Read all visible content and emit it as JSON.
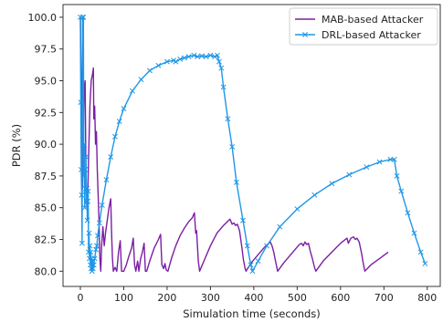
{
  "chart_data": {
    "type": "line",
    "xlabel": "Simulation time (seconds)",
    "ylabel": "PDR (%)",
    "xlim": [
      -40,
      830
    ],
    "ylim": [
      78.8,
      101.0
    ],
    "xticks": [
      0,
      100,
      200,
      300,
      400,
      500,
      600,
      700,
      800
    ],
    "yticks": [
      80.0,
      82.5,
      85.0,
      87.5,
      90.0,
      92.5,
      95.0,
      97.5,
      100.0
    ],
    "ytick_labels": [
      "80.0",
      "82.5",
      "85.0",
      "87.5",
      "90.0",
      "92.5",
      "95.0",
      "97.5",
      "100.0"
    ],
    "grid": false,
    "legend_position": "top-right",
    "series": [
      {
        "name": "MAB-based Attacker",
        "color": "#7b1fa2",
        "marker": "none",
        "points": [
          [
            0,
            100.0
          ],
          [
            3,
            92.0
          ],
          [
            5,
            86.5
          ],
          [
            7,
            91.0
          ],
          [
            9,
            94.5
          ],
          [
            11,
            95.0
          ],
          [
            13,
            87.0
          ],
          [
            15,
            85.0
          ],
          [
            17,
            86.0
          ],
          [
            19,
            89.0
          ],
          [
            22,
            93.0
          ],
          [
            25,
            95.0
          ],
          [
            28,
            95.5
          ],
          [
            30,
            96.0
          ],
          [
            31,
            92.0
          ],
          [
            33,
            93.0
          ],
          [
            35,
            90.0
          ],
          [
            37,
            91.0
          ],
          [
            39,
            88.0
          ],
          [
            41,
            86.0
          ],
          [
            43,
            84.0
          ],
          [
            45,
            81.0
          ],
          [
            47,
            80.0
          ],
          [
            49,
            82.0
          ],
          [
            52,
            83.5
          ],
          [
            55,
            82.0
          ],
          [
            58,
            83.0
          ],
          [
            62,
            84.0
          ],
          [
            66,
            85.0
          ],
          [
            70,
            85.7
          ],
          [
            72,
            83.0
          ],
          [
            74,
            81.0
          ],
          [
            76,
            80.0
          ],
          [
            80,
            80.3
          ],
          [
            84,
            80.0
          ],
          [
            88,
            81.5
          ],
          [
            92,
            82.4
          ],
          [
            95,
            80.0
          ],
          [
            100,
            80.0
          ],
          [
            106,
            80.5
          ],
          [
            112,
            81.2
          ],
          [
            118,
            81.8
          ],
          [
            122,
            82.6
          ],
          [
            125,
            80.5
          ],
          [
            128,
            80.0
          ],
          [
            132,
            80.8
          ],
          [
            135,
            80.0
          ],
          [
            139,
            81.0
          ],
          [
            143,
            81.5
          ],
          [
            147,
            82.2
          ],
          [
            150,
            80.0
          ],
          [
            153,
            80.0
          ],
          [
            160,
            80.8
          ],
          [
            170,
            81.8
          ],
          [
            180,
            82.5
          ],
          [
            185,
            82.9
          ],
          [
            188,
            80.5
          ],
          [
            192,
            80.2
          ],
          [
            195,
            80.6
          ],
          [
            198,
            80.1
          ],
          [
            202,
            80.0
          ],
          [
            210,
            81.0
          ],
          [
            220,
            82.0
          ],
          [
            230,
            82.8
          ],
          [
            240,
            83.4
          ],
          [
            250,
            83.9
          ],
          [
            258,
            84.2
          ],
          [
            263,
            84.6
          ],
          [
            266,
            83.0
          ],
          [
            268,
            83.2
          ],
          [
            270,
            82.0
          ],
          [
            272,
            80.8
          ],
          [
            275,
            80.0
          ],
          [
            285,
            80.8
          ],
          [
            300,
            82.0
          ],
          [
            315,
            83.0
          ],
          [
            330,
            83.6
          ],
          [
            345,
            84.1
          ],
          [
            350,
            83.7
          ],
          [
            354,
            83.8
          ],
          [
            358,
            83.6
          ],
          [
            362,
            83.7
          ],
          [
            367,
            83.2
          ],
          [
            372,
            82.0
          ],
          [
            376,
            80.9
          ],
          [
            380,
            80.2
          ],
          [
            382,
            80.0
          ],
          [
            395,
            80.7
          ],
          [
            410,
            81.3
          ],
          [
            425,
            81.9
          ],
          [
            438,
            82.3
          ],
          [
            442,
            82.0
          ],
          [
            446,
            81.5
          ],
          [
            450,
            80.8
          ],
          [
            455,
            80.0
          ],
          [
            470,
            80.7
          ],
          [
            490,
            81.5
          ],
          [
            505,
            82.1
          ],
          [
            510,
            82.2
          ],
          [
            514,
            82.0
          ],
          [
            518,
            82.3
          ],
          [
            522,
            82.1
          ],
          [
            526,
            82.2
          ],
          [
            530,
            81.6
          ],
          [
            535,
            81.0
          ],
          [
            540,
            80.3
          ],
          [
            543,
            80.0
          ],
          [
            560,
            80.8
          ],
          [
            580,
            81.5
          ],
          [
            600,
            82.2
          ],
          [
            615,
            82.6
          ],
          [
            618,
            82.2
          ],
          [
            624,
            82.6
          ],
          [
            630,
            82.7
          ],
          [
            634,
            82.5
          ],
          [
            638,
            82.6
          ],
          [
            643,
            82.3
          ],
          [
            648,
            81.5
          ],
          [
            652,
            80.7
          ],
          [
            656,
            80.0
          ],
          [
            670,
            80.5
          ],
          [
            690,
            81.0
          ],
          [
            710,
            81.5
          ]
        ]
      },
      {
        "name": "DRL-based Attacker",
        "color": "#1f97e6",
        "marker": "x",
        "points": [
          [
            0,
            100.0
          ],
          [
            1,
            93.3
          ],
          [
            2,
            88.0
          ],
          [
            3,
            86.0
          ],
          [
            4,
            82.2
          ],
          [
            5,
            100.0
          ],
          [
            7,
            100.0
          ],
          [
            8,
            87.5
          ],
          [
            9,
            90.0
          ],
          [
            10,
            85.0
          ],
          [
            11,
            88.0
          ],
          [
            12,
            86.5
          ],
          [
            13,
            89.0
          ],
          [
            14,
            85.5
          ],
          [
            15,
            86.5
          ],
          [
            16,
            84.0
          ],
          [
            17,
            85.5
          ],
          [
            18,
            86.3
          ],
          [
            19,
            81.5
          ],
          [
            20,
            83.0
          ],
          [
            21,
            81.0
          ],
          [
            22,
            82.0
          ],
          [
            23,
            80.5
          ],
          [
            24,
            81.5
          ],
          [
            25,
            80.2
          ],
          [
            26,
            81.0
          ],
          [
            27,
            80.0
          ],
          [
            28,
            80.8
          ],
          [
            29,
            80.2
          ],
          [
            31,
            80.5
          ],
          [
            33,
            81.0
          ],
          [
            36,
            81.7
          ],
          [
            38,
            82.0
          ],
          [
            40,
            82.8
          ],
          [
            44,
            83.8
          ],
          [
            50,
            85.2
          ],
          [
            60,
            87.2
          ],
          [
            70,
            89.0
          ],
          [
            80,
            90.6
          ],
          [
            90,
            91.8
          ],
          [
            100,
            92.8
          ],
          [
            120,
            94.2
          ],
          [
            140,
            95.1
          ],
          [
            160,
            95.8
          ],
          [
            180,
            96.2
          ],
          [
            200,
            96.5
          ],
          [
            215,
            96.6
          ],
          [
            220,
            96.5
          ],
          [
            230,
            96.7
          ],
          [
            240,
            96.8
          ],
          [
            250,
            96.9
          ],
          [
            262,
            97.0
          ],
          [
            270,
            96.9
          ],
          [
            280,
            96.95
          ],
          [
            290,
            96.9
          ],
          [
            300,
            97.0
          ],
          [
            310,
            96.9
          ],
          [
            316,
            97.0
          ],
          [
            320,
            96.5
          ],
          [
            325,
            96.0
          ],
          [
            330,
            94.5
          ],
          [
            340,
            92.0
          ],
          [
            350,
            89.8
          ],
          [
            360,
            87.0
          ],
          [
            375,
            84.0
          ],
          [
            385,
            82.0
          ],
          [
            393,
            80.5
          ],
          [
            397,
            80.0
          ],
          [
            410,
            80.8
          ],
          [
            430,
            82.0
          ],
          [
            460,
            83.5
          ],
          [
            500,
            84.9
          ],
          [
            540,
            86.0
          ],
          [
            580,
            86.9
          ],
          [
            620,
            87.6
          ],
          [
            660,
            88.2
          ],
          [
            690,
            88.6
          ],
          [
            715,
            88.8
          ],
          [
            724,
            88.8
          ],
          [
            730,
            87.5
          ],
          [
            740,
            86.3
          ],
          [
            755,
            84.6
          ],
          [
            770,
            83.0
          ],
          [
            785,
            81.5
          ],
          [
            795,
            80.6
          ]
        ]
      }
    ]
  }
}
